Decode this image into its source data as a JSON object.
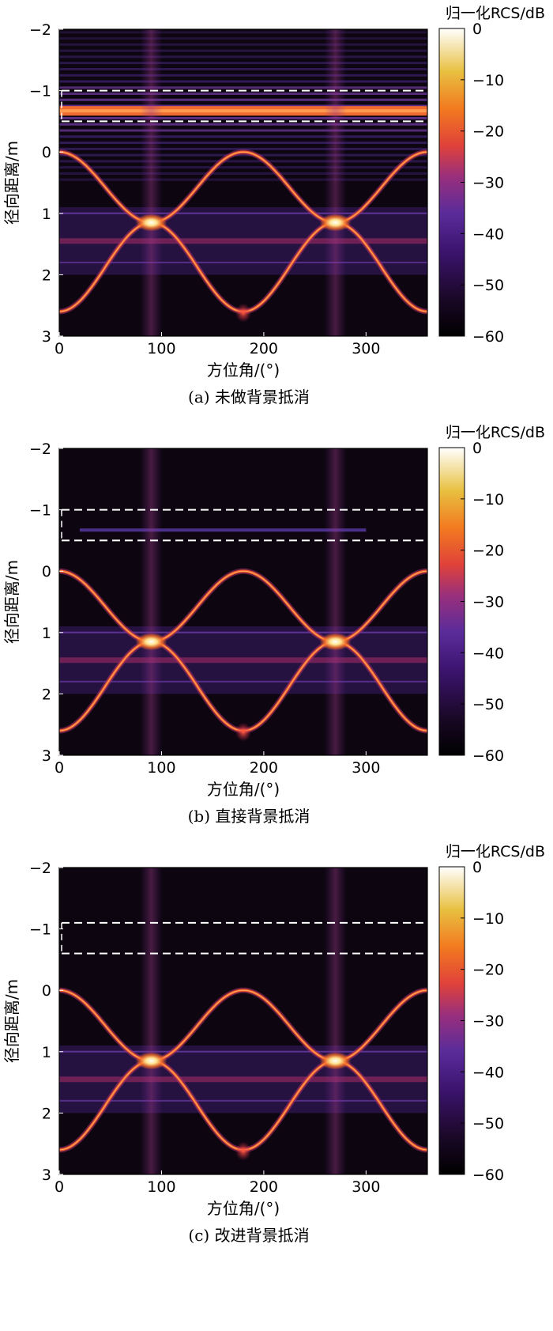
{
  "chart_data": [
    {
      "type": "heatmap",
      "caption": "(a) 未做背景抵消",
      "xlabel": "方位角/(°)",
      "ylabel": "径向距离/m",
      "colorbar_label": "归一化RCS/dB",
      "xlim": [
        0,
        360
      ],
      "ylim": [
        -2,
        3
      ],
      "y_reversed": true,
      "xticks": [
        0,
        100,
        200,
        300
      ],
      "yticks": [
        -2,
        -1,
        0,
        1,
        2,
        3
      ],
      "colorbar_range": [
        -60,
        0
      ],
      "colorbar_ticks": [
        0,
        -10,
        -20,
        -30,
        -40,
        -50,
        -60
      ],
      "colormap": "black-purple-red-orange-yellow-white",
      "highlight_box_y": [
        -1.0,
        -0.5
      ],
      "background_clutter": "strong",
      "clutter_band_y": -0.67,
      "peaks": [
        {
          "x": 90,
          "y": 1.15
        },
        {
          "x": 270,
          "y": 1.15
        }
      ]
    },
    {
      "type": "heatmap",
      "caption": "(b) 直接背景抵消",
      "xlabel": "方位角/(°)",
      "ylabel": "径向距离/m",
      "colorbar_label": "归一化RCS/dB",
      "xlim": [
        0,
        360
      ],
      "ylim": [
        -2,
        3
      ],
      "y_reversed": true,
      "xticks": [
        0,
        100,
        200,
        300
      ],
      "yticks": [
        -2,
        -1,
        0,
        1,
        2,
        3
      ],
      "colorbar_range": [
        -60,
        0
      ],
      "colorbar_ticks": [
        0,
        -10,
        -20,
        -30,
        -40,
        -50,
        -60
      ],
      "colormap": "black-purple-red-orange-yellow-white",
      "highlight_box_y": [
        -1.0,
        -0.5
      ],
      "background_clutter": "residual",
      "clutter_band_y": -0.67,
      "clutter_band_x": [
        20,
        300
      ],
      "peaks": [
        {
          "x": 90,
          "y": 1.15
        },
        {
          "x": 270,
          "y": 1.15
        }
      ]
    },
    {
      "type": "heatmap",
      "caption": "(c) 改进背景抵消",
      "xlabel": "方位角/(°)",
      "ylabel": "径向距离/m",
      "colorbar_label": "归一化RCS/dB",
      "xlim": [
        0,
        360
      ],
      "ylim": [
        -2,
        3
      ],
      "y_reversed": true,
      "xticks": [
        0,
        100,
        200,
        300
      ],
      "yticks": [
        -2,
        -1,
        0,
        1,
        2,
        3
      ],
      "colorbar_range": [
        -60,
        0
      ],
      "colorbar_ticks": [
        0,
        -10,
        -20,
        -30,
        -40,
        -50,
        -60
      ],
      "colormap": "black-purple-red-orange-yellow-white",
      "highlight_box_y": [
        -1.1,
        -0.6
      ],
      "background_clutter": "none",
      "peaks": [
        {
          "x": 90,
          "y": 1.15
        },
        {
          "x": 270,
          "y": 1.15
        }
      ]
    }
  ]
}
